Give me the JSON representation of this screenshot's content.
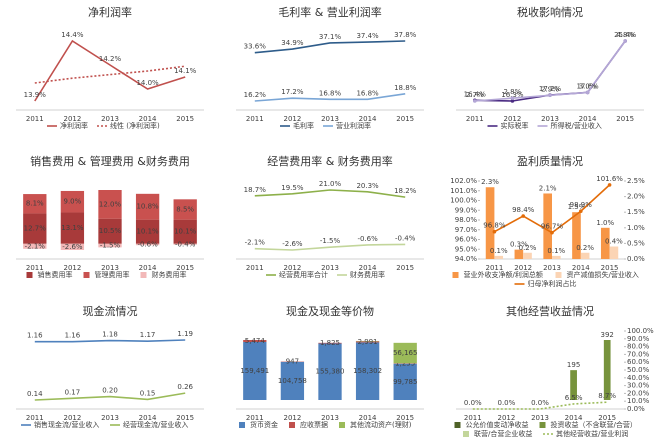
{
  "chart_data": [
    {
      "type": "line",
      "title": "净利润率",
      "categories": [
        "2011",
        "2012",
        "2013",
        "2014",
        "2015"
      ],
      "series": [
        {
          "name": "净利润率",
          "color": "#c0504d",
          "values": [
            13.9,
            14.4,
            14.2,
            14.0,
            14.1
          ],
          "value_labels": [
            "13.9%",
            "14.4%",
            "14.2%",
            "14.0%",
            "14.1%"
          ]
        },
        {
          "name": "线性 (净利润率)",
          "color": "#c0504d",
          "dash": true,
          "values": [
            14.05,
            14.09,
            14.12,
            14.15,
            14.19
          ]
        }
      ]
    },
    {
      "type": "line",
      "title": "毛利率 & 营业利润率",
      "categories": [
        "2011",
        "2012",
        "2013",
        "2014",
        "2015"
      ],
      "series": [
        {
          "name": "毛利率",
          "color": "#2e5c8a",
          "values": [
            33.6,
            34.9,
            37.1,
            37.4,
            37.8
          ],
          "value_labels": [
            "33.6%",
            "34.9%",
            "37.1%",
            "37.4%",
            "37.8%"
          ]
        },
        {
          "name": "营业利润率",
          "color": "#7aa6d6",
          "values": [
            16.2,
            17.2,
            16.8,
            16.8,
            18.8
          ],
          "value_labels": [
            "16.2%",
            "17.2%",
            "16.8%",
            "16.8%",
            "18.8%"
          ]
        }
      ]
    },
    {
      "type": "line",
      "title": "税收影响情况",
      "categories": [
        "2011",
        "2012",
        "2013",
        "2014",
        "2015"
      ],
      "series": [
        {
          "name": "实际税率",
          "color": "#4b2c83",
          "marker": true,
          "values": [
            16.4,
            16.3,
            17.2,
            17.6,
            25.4
          ],
          "value_labels": [
            "16.4%",
            "16.3%",
            "17.2%",
            "17.6%",
            "25.4%"
          ]
        },
        {
          "name": "所得税/营业收入",
          "color": "#b4a7d6",
          "marker": true,
          "axis": "y2",
          "values": [
            2.7,
            2.8,
            2.9,
            3.0,
            4.8
          ],
          "value_labels": [
            "2.7%",
            "2.8%",
            "2.9%",
            "3.0%",
            "4.8%"
          ]
        }
      ]
    },
    {
      "type": "bar",
      "stacked": true,
      "title": "销售费用 & 管理费用 &财务费用",
      "categories": [
        "2011",
        "2012",
        "2013",
        "2014",
        "2015"
      ],
      "series": [
        {
          "name": "销售费用率",
          "color": "#a83a3a",
          "values": [
            12.7,
            13.1,
            10.5,
            10.1,
            10.1
          ],
          "value_labels": [
            "12.7%",
            "13.1%",
            "10.5%",
            "10.1%",
            "10.1%"
          ]
        },
        {
          "name": "管理费用率",
          "color": "#c9514f",
          "values": [
            8.1,
            9.0,
            12.0,
            10.8,
            8.5
          ],
          "value_labels": [
            "8.1%",
            "9.0%",
            "12.0%",
            "10.8%",
            "8.5%"
          ]
        },
        {
          "name": "财务费用率",
          "color": "#f2b8b8",
          "values": [
            -2.1,
            -2.6,
            -1.5,
            -0.6,
            -0.4
          ],
          "value_labels": [
            "-2.1%",
            "-2.6%",
            "-1.5%",
            "-0.6%",
            "-0.4%"
          ]
        }
      ]
    },
    {
      "type": "line",
      "title": "经营费用率 & 财务费用率",
      "categories": [
        "2011",
        "2012",
        "2013",
        "2014",
        "2015"
      ],
      "series": [
        {
          "name": "经营费用率合计",
          "color": "#8db04a",
          "values": [
            18.7,
            19.5,
            21.0,
            20.3,
            18.2
          ],
          "value_labels": [
            "18.7%",
            "19.5%",
            "21.0%",
            "20.3%",
            "18.2%"
          ]
        },
        {
          "name": "财务费用率",
          "color": "#c3d69b",
          "values": [
            -2.1,
            -2.6,
            -1.5,
            -0.6,
            -0.4
          ],
          "value_labels": [
            "-2.1%",
            "-2.6%",
            "-1.5%",
            "-0.6%",
            "-0.4%"
          ]
        }
      ]
    },
    {
      "type": "combo",
      "title": "盈利质量情况",
      "categories": [
        "2011",
        "2012",
        "2013",
        "2014",
        "2015"
      ],
      "ylim": [
        94,
        102
      ],
      "yticks": [
        {
          "value": 94,
          "label": "94.0%"
        },
        {
          "value": 95,
          "label": "95.0%"
        },
        {
          "value": 96,
          "label": "96.0%"
        },
        {
          "value": 97,
          "label": "97.0%"
        },
        {
          "value": 98,
          "label": "98.0%"
        },
        {
          "value": 99,
          "label": "99.0%"
        },
        {
          "value": 100,
          "label": "100.0%"
        },
        {
          "value": 101,
          "label": "101.0%"
        },
        {
          "value": 102,
          "label": "102.0%"
        }
      ],
      "y2lim": [
        0,
        2.5
      ],
      "y2ticks": [
        {
          "value": 0,
          "label": "0.0%"
        },
        {
          "value": 0.5,
          "label": "0.5%"
        },
        {
          "value": 1,
          "label": "1.0%"
        },
        {
          "value": 1.5,
          "label": "1.5%"
        },
        {
          "value": 2,
          "label": "2.0%"
        },
        {
          "value": 2.5,
          "label": "2.5%"
        }
      ],
      "series": [
        {
          "name": "营业外收支净额/利润总额",
          "kind": "bar",
          "axis": "y2",
          "color": "#f79646",
          "values": [
            2.3,
            0.3,
            2.1,
            1.5,
            1.0
          ],
          "value_labels": [
            "2.3%",
            "0.3%",
            "2.1%",
            "1.5%",
            "1.0%"
          ]
        },
        {
          "name": "资产减值损失/营业收入",
          "kind": "bar",
          "axis": "y2",
          "color": "#fbd4b4",
          "values": [
            0.1,
            0.2,
            0.1,
            0.2,
            0.4
          ],
          "value_labels": [
            "0.1%",
            "0.2%",
            "0.1%",
            "0.2%",
            "0.4%"
          ]
        },
        {
          "name": "归母净利润占比",
          "kind": "line",
          "color": "#e36c09",
          "marker": true,
          "values": [
            96.8,
            98.4,
            96.7,
            98.9,
            101.6
          ],
          "value_labels": [
            "96.8%",
            "98.4%",
            "96.7%",
            "98.9%",
            "101.6%"
          ]
        }
      ]
    },
    {
      "type": "line",
      "title": "现金流情况",
      "categories": [
        "2011",
        "2012",
        "2013",
        "2014",
        "2015"
      ],
      "series": [
        {
          "name": "销售现金流/营业收入",
          "color": "#4f81bd",
          "values": [
            1.16,
            1.16,
            1.18,
            1.17,
            1.19
          ],
          "value_labels": [
            "1.16",
            "1.16",
            "1.18",
            "1.17",
            "1.19"
          ]
        },
        {
          "name": "经营现金流/营业收入",
          "color": "#9bbb59",
          "values": [
            0.14,
            0.17,
            0.2,
            0.15,
            0.26
          ],
          "value_labels": [
            "0.14",
            "0.17",
            "0.20",
            "0.15",
            "0.26"
          ]
        }
      ]
    },
    {
      "type": "bar",
      "stacked": true,
      "title": "现金及现金等价物",
      "categories": [
        "2011",
        "2012",
        "2013",
        "2014",
        "2015"
      ],
      "series": [
        {
          "name": "货币资金",
          "color": "#4f81bd",
          "values": [
            159491,
            104758,
            155380,
            158302,
            99785
          ],
          "value_labels": [
            "159,491",
            "104,758",
            "155,380",
            "158,302",
            "99,785"
          ]
        },
        {
          "name": "应收票据",
          "color": "#c0504d",
          "values": [
            5474,
            947,
            1825,
            2991,
            1235
          ],
          "value_labels": [
            "5,474",
            "947",
            "1,825",
            "2,991",
            "1,235"
          ]
        },
        {
          "name": "其他流动资产(理财)",
          "color": "#9bbb59",
          "values": [
            0,
            0,
            0,
            1000,
            56165
          ],
          "value_labels": [
            null,
            null,
            null,
            null,
            "56,165"
          ]
        }
      ]
    },
    {
      "type": "combo",
      "title": "其他经营收益情况",
      "categories": [
        "2011",
        "2012",
        "2013",
        "2014",
        "2015"
      ],
      "y2lim": [
        0,
        100
      ],
      "y2ticks": [
        {
          "value": 0,
          "label": "0.0%"
        },
        {
          "value": 10,
          "label": "10.0%"
        },
        {
          "value": 20,
          "label": "20.0%"
        },
        {
          "value": 30,
          "label": "30.0%"
        },
        {
          "value": 40,
          "label": "40.0%"
        },
        {
          "value": 50,
          "label": "50.0%"
        },
        {
          "value": 60,
          "label": "60.0%"
        },
        {
          "value": 70,
          "label": "70.0%"
        },
        {
          "value": 80,
          "label": "80.0%"
        },
        {
          "value": 90,
          "label": "90.0%"
        },
        {
          "value": 100,
          "label": "100.0%"
        }
      ],
      "series": [
        {
          "name": "公允价值变动净收益",
          "kind": "bar",
          "color": "#4f6228",
          "values": [
            0,
            0,
            0,
            0,
            0
          ]
        },
        {
          "name": "投资收益（不含联营/合营）",
          "kind": "bar",
          "color": "#77933c",
          "values": [
            0,
            0,
            0,
            195,
            392
          ],
          "value_labels": [
            null,
            null,
            null,
            "195",
            "392"
          ]
        },
        {
          "name": "联营/合营企业收益",
          "kind": "bar",
          "color": "#c3d69b",
          "values": [
            0,
            0,
            0,
            0,
            0
          ]
        },
        {
          "name": "其他经营收益/营业利润",
          "kind": "line",
          "axis": "y2",
          "dash": true,
          "color": "#9bbb59",
          "values": [
            0,
            0,
            0,
            6.5,
            8.7
          ],
          "value_labels": [
            "0.0%",
            "0.0%",
            "0.0%",
            "6.5%",
            "8.7%"
          ]
        }
      ]
    }
  ]
}
